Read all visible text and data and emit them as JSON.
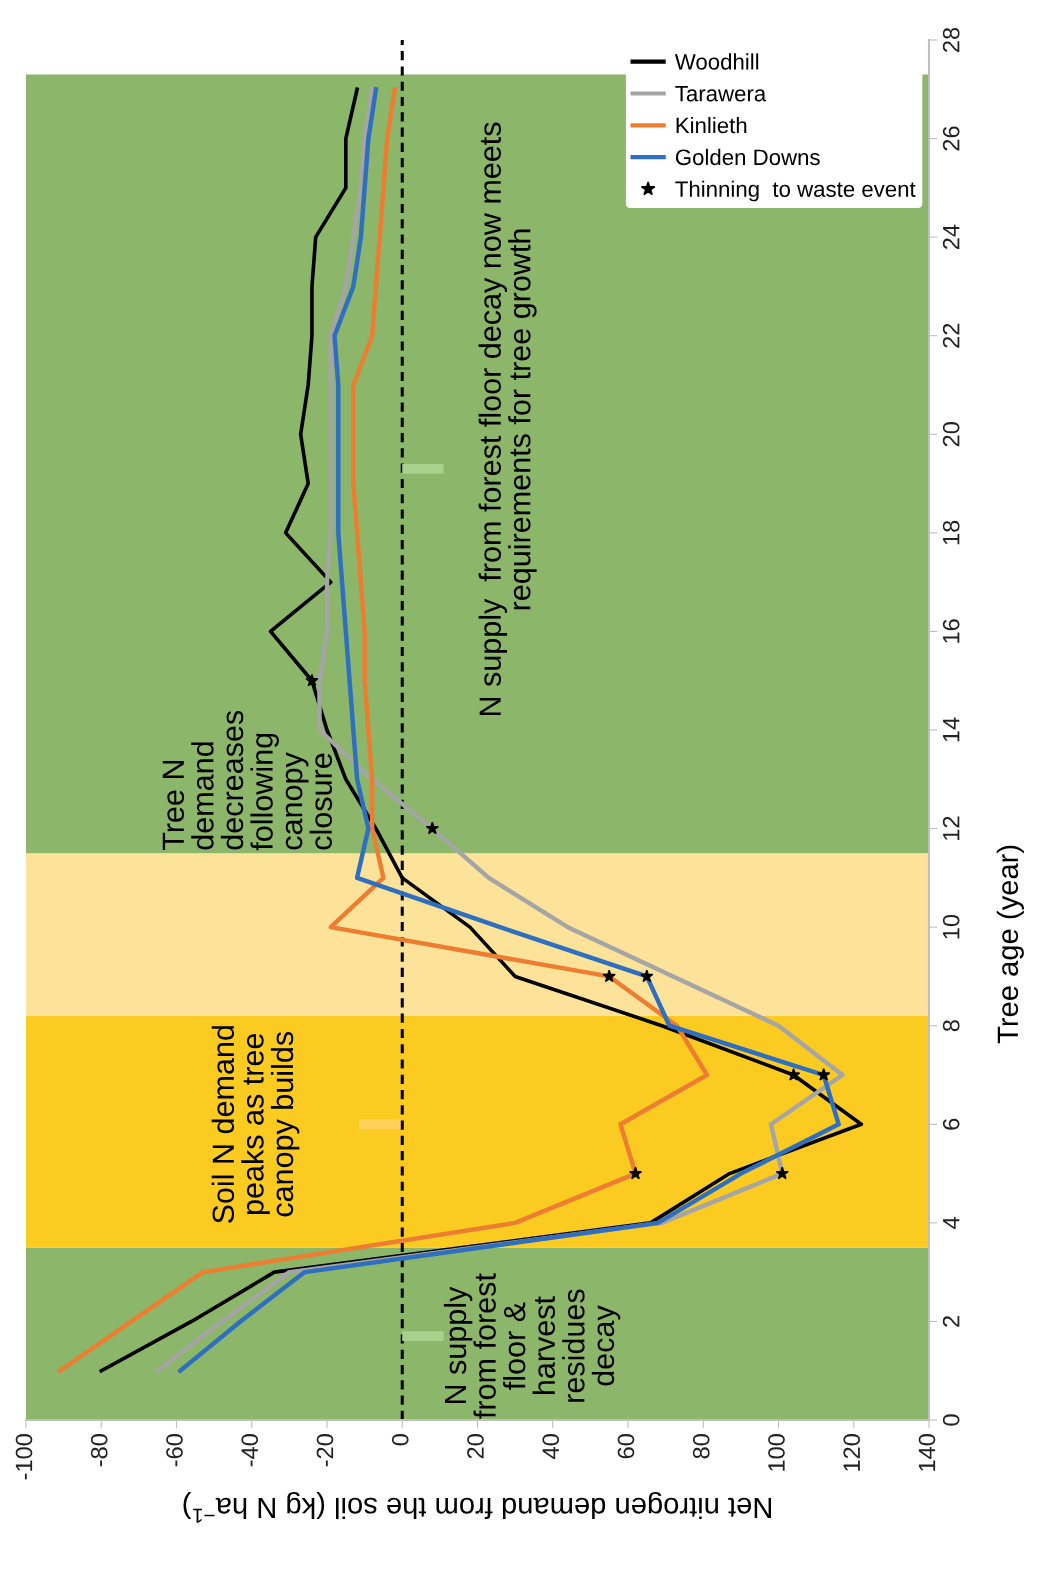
{
  "chart_data": {
    "type": "line",
    "xlabel": "Net nitrogen demand from the soil (kg N ha$^{−1}$)",
    "ylabel": "Tree age (year)",
    "xlim": [
      -100,
      140
    ],
    "xticks": [
      -100,
      -80,
      -60,
      -40,
      -20,
      0,
      20,
      40,
      60,
      80,
      100,
      120,
      140
    ],
    "ylim": [
      0,
      28
    ],
    "yticks": [
      0,
      2,
      4,
      6,
      8,
      10,
      12,
      14,
      16,
      18,
      20,
      22,
      24,
      26,
      28
    ],
    "series": [
      {
        "name": "Woodhill",
        "color": "#000000",
        "x": [
          -80,
          -56,
          -34,
          66,
          87,
          122,
          104,
          69,
          30,
          18,
          0,
          -7,
          -15,
          -20,
          -24,
          -35,
          -19,
          -31,
          -25,
          -27,
          -25,
          -24,
          -24,
          -23,
          -15,
          -15,
          -12
        ],
        "values": [
          1,
          2,
          3,
          4,
          5,
          6,
          7,
          8,
          9,
          10,
          11,
          12,
          13,
          14,
          15,
          16,
          17,
          18,
          19,
          20,
          21,
          22,
          23,
          24,
          25,
          26,
          27
        ]
      },
      {
        "name": "Tarawera",
        "color": "#a5a5a5",
        "x": [
          -65,
          -48,
          -30,
          69,
          101,
          98,
          117,
          100,
          72,
          44,
          23,
          8,
          -8,
          -22,
          -22,
          -20,
          -20,
          -19,
          -19,
          -19,
          -19,
          -19,
          -15,
          -13,
          -11,
          -10,
          -8
        ],
        "values": [
          1,
          2,
          3,
          4,
          5,
          6,
          7,
          8,
          9,
          10,
          11,
          12,
          13,
          14,
          15,
          16,
          17,
          18,
          19,
          20,
          21,
          22,
          23,
          24,
          25,
          26,
          27
        ]
      },
      {
        "name": "Kinlieth",
        "color": "#ed7d31",
        "x": [
          -91,
          -72,
          -53,
          30,
          62,
          58,
          81,
          73,
          55,
          -19,
          -5,
          -8,
          -8,
          -9,
          -10,
          -10,
          -11,
          -12,
          -13,
          -13,
          -13,
          -8,
          -7,
          -6,
          -5,
          -4,
          -2
        ],
        "values": [
          1,
          2,
          3,
          4,
          5,
          6,
          7,
          8,
          9,
          10,
          11,
          12,
          13,
          14,
          15,
          16,
          17,
          18,
          19,
          20,
          21,
          22,
          23,
          24,
          25,
          26,
          27
        ]
      },
      {
        "name": "Golden Downs",
        "color": "#2e6fc0",
        "x": [
          -59,
          -43,
          -26,
          68,
          90,
          116,
          112,
          71,
          65,
          26,
          -12,
          -9,
          -12,
          -13,
          -14,
          -15,
          -16,
          -17,
          -17,
          -17,
          -17,
          -18,
          -13,
          -11,
          -10,
          -9,
          -7
        ],
        "values": [
          1,
          2,
          3,
          4,
          5,
          6,
          7,
          8,
          9,
          10,
          11,
          12,
          13,
          14,
          15,
          16,
          17,
          18,
          19,
          20,
          21,
          22,
          23,
          24,
          25,
          26,
          27
        ]
      },
      {
        "name": "Thinning  to waste event",
        "type": "scatter",
        "marker": "star",
        "color": "#000000",
        "x": [
          104,
          -24,
          62,
          55,
          101,
          8,
          112,
          65
        ],
        "values": [
          7,
          15,
          5,
          9,
          5,
          12,
          7,
          9
        ]
      }
    ],
    "bands": [
      {
        "axis": "y",
        "from": 0,
        "to": 3.5,
        "color": "#8cb66a"
      },
      {
        "axis": "y",
        "from": 3.5,
        "to": 8.2,
        "color": "#fbcb22"
      },
      {
        "axis": "y",
        "from": 8.2,
        "to": 11.5,
        "color": "#fde39a"
      },
      {
        "axis": "y",
        "from": 11.5,
        "to": 27.3,
        "color": "#8cb66a"
      }
    ],
    "ref_lines": [
      {
        "axis": "x",
        "value": 0,
        "color": "#000000",
        "line_style": "dashed"
      }
    ],
    "annotations": [
      "Soil N demand\npeaks as tree\ncanopy builds",
      "Tree N\ndemand\ndecreases\nfollowing\ncanopy\nclosure",
      "N supply\nfrom forest\nfloor &\nharvest\nresidues\ndecay",
      "N supply  from forest floor decay now meets\nrequirements for tree growth"
    ],
    "legend": "top right",
    "grid": false
  }
}
